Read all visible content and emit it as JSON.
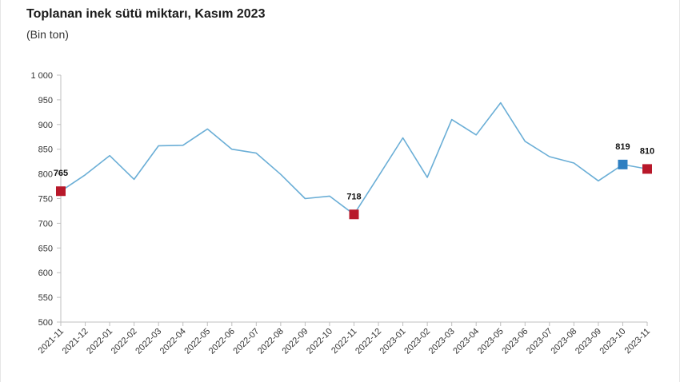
{
  "chart_data": {
    "type": "line",
    "title": "Toplanan inek sütü miktarı, Kasım 2023",
    "subtitle": "(Bin ton)",
    "xlabel": "",
    "ylabel": "",
    "ylim": [
      500,
      1000
    ],
    "yticks": [
      500,
      550,
      600,
      650,
      700,
      750,
      800,
      850,
      900,
      950,
      1000
    ],
    "ytick_labels": [
      "500",
      "550",
      "600",
      "650",
      "700",
      "750",
      "800",
      "850",
      "900",
      "950",
      "1 000"
    ],
    "categories": [
      "2021-11",
      "2021-12",
      "2022-01",
      "2022-02",
      "2022-03",
      "2022-04",
      "2022-05",
      "2022-06",
      "2022-07",
      "2022-08",
      "2022-09",
      "2022-10",
      "2022-11",
      "2022-12",
      "2023-01",
      "2023-02",
      "2023-03",
      "2023-04",
      "2023-05",
      "2023-06",
      "2023-07",
      "2023-08",
      "2023-09",
      "2023-10",
      "2023-11"
    ],
    "series": [
      {
        "values": [
          765,
          798,
          837,
          789,
          857,
          858,
          891,
          850,
          842,
          799,
          750,
          755,
          718,
          795,
          873,
          793,
          910,
          879,
          944,
          866,
          835,
          822,
          786,
          819,
          810
        ]
      }
    ],
    "line_color": "#6aaed6",
    "highlights": [
      {
        "index": 0,
        "label": "765",
        "color": "#b8182a"
      },
      {
        "index": 12,
        "label": "718",
        "color": "#b8182a"
      },
      {
        "index": 23,
        "label": "819",
        "color": "#2e7fc1"
      },
      {
        "index": 24,
        "label": "810",
        "color": "#b8182a"
      }
    ],
    "grid": false,
    "legend": "none"
  }
}
